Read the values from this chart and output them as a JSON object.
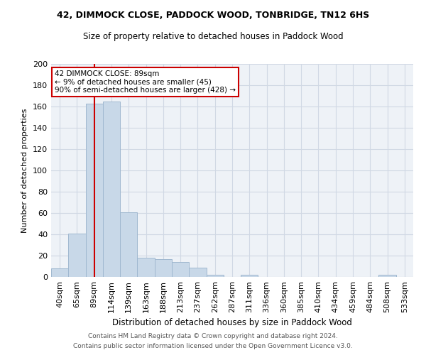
{
  "title1": "42, DIMMOCK CLOSE, PADDOCK WOOD, TONBRIDGE, TN12 6HS",
  "title2": "Size of property relative to detached houses in Paddock Wood",
  "xlabel": "Distribution of detached houses by size in Paddock Wood",
  "ylabel": "Number of detached properties",
  "bar_color": "#c8d8e8",
  "bar_edge_color": "#a0b8d0",
  "bg_color": "#eef2f7",
  "grid_color": "#d0d8e4",
  "vline_color": "#cc0000",
  "annotation_box_color": "#cc0000",
  "categories": [
    "40sqm",
    "65sqm",
    "89sqm",
    "114sqm",
    "139sqm",
    "163sqm",
    "188sqm",
    "213sqm",
    "237sqm",
    "262sqm",
    "287sqm",
    "311sqm",
    "336sqm",
    "360sqm",
    "385sqm",
    "410sqm",
    "434sqm",
    "459sqm",
    "484sqm",
    "508sqm",
    "533sqm"
  ],
  "values": [
    8,
    41,
    163,
    165,
    61,
    18,
    17,
    14,
    9,
    2,
    0,
    2,
    0,
    0,
    0,
    0,
    0,
    0,
    0,
    2,
    0
  ],
  "vline_position": 2,
  "annotation_line1": "42 DIMMOCK CLOSE: 89sqm",
  "annotation_line2": "← 9% of detached houses are smaller (45)",
  "annotation_line3": "90% of semi-detached houses are larger (428) →",
  "footer1": "Contains HM Land Registry data © Crown copyright and database right 2024.",
  "footer2": "Contains public sector information licensed under the Open Government Licence v3.0.",
  "ylim": [
    0,
    200
  ],
  "yticks": [
    0,
    20,
    40,
    60,
    80,
    100,
    120,
    140,
    160,
    180,
    200
  ]
}
